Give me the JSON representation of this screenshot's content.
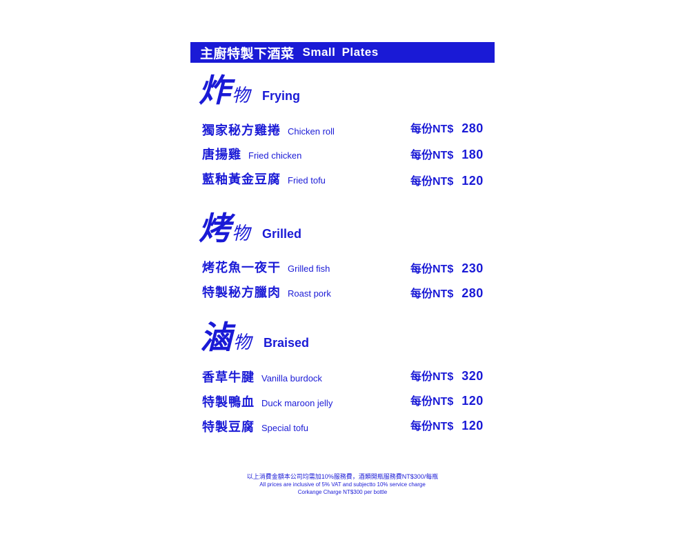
{
  "header": {
    "title_zh": "主廚特製下酒菜",
    "title_en": "Small Plates"
  },
  "sections": [
    {
      "big_char": "炸",
      "small_char": "物",
      "title_en": "Frying",
      "items": [
        {
          "name_zh": "獨家秘方雞捲",
          "name_en": "Chicken roll",
          "price_prefix": "每份NT$",
          "price": "280"
        },
        {
          "name_zh": "唐揚雞",
          "name_en": "Fried chicken",
          "price_prefix": "每份NT$",
          "price": "180"
        },
        {
          "name_zh": "藍釉黃金豆腐",
          "name_en": "Fried tofu",
          "price_prefix": "每份NT$",
          "price": "120"
        }
      ]
    },
    {
      "big_char": "烤",
      "small_char": "物",
      "title_en": "Grilled",
      "items": [
        {
          "name_zh": "烤花魚一夜干",
          "name_en": "Grilled fish",
          "price_prefix": "每份NT$",
          "price": "230"
        },
        {
          "name_zh": "特製秘方臘肉",
          "name_en": "Roast pork",
          "price_prefix": "每份NT$",
          "price": "280"
        }
      ]
    },
    {
      "big_char": "滷",
      "small_char": "物",
      "title_en": "Braised",
      "items": [
        {
          "name_zh": "香草牛腱",
          "name_en": "Vanilla burdock",
          "price_prefix": "每份NT$",
          "price": "320"
        },
        {
          "name_zh": "特製鴨血",
          "name_en": "Duck maroon jelly",
          "price_prefix": "每份NT$",
          "price": "120"
        },
        {
          "name_zh": "特製豆腐",
          "name_en": "Special tofu",
          "price_prefix": "每份NT$",
          "price": "120"
        }
      ]
    }
  ],
  "footer": {
    "line1": "以上消費金額本公司均需加10%服務費，酒類開瓶服務費NT$300/每瓶",
    "line2": "All prices are inclusive of 5% VAT and subjectto 10% service charge",
    "line3": "Corkange Charge NT$300 per bottle"
  },
  "colors": {
    "accent": "#1a1ad6",
    "background": "#ffffff"
  }
}
